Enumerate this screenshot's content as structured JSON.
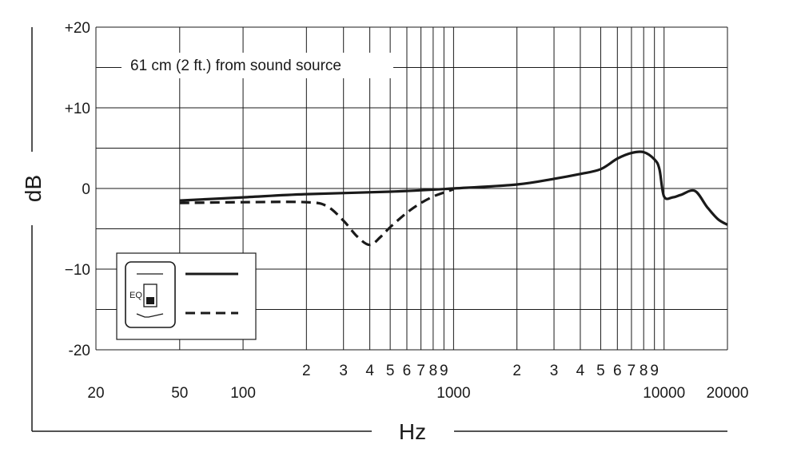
{
  "chart_data": {
    "type": "line",
    "title": "",
    "xlabel": "Hz",
    "ylabel": "dB",
    "xscale": "log",
    "xlim": [
      20,
      20000
    ],
    "ylim": [
      -20,
      20
    ],
    "grid": true,
    "annotation": "61 cm (2 ft.) from sound source",
    "y_ticks": [
      {
        "value": 20,
        "label": "+20"
      },
      {
        "value": 10,
        "label": "+10"
      },
      {
        "value": 0,
        "label": "0"
      },
      {
        "value": -10,
        "label": "−10"
      },
      {
        "value": -20,
        "label": "-20"
      }
    ],
    "x_tick_labels": [
      {
        "value": 20,
        "label": "20",
        "row": 2
      },
      {
        "value": 50,
        "label": "50",
        "row": 2
      },
      {
        "value": 100,
        "label": "100",
        "row": 2
      },
      {
        "value": 200,
        "label": "2",
        "row": 1
      },
      {
        "value": 300,
        "label": "3",
        "row": 1
      },
      {
        "value": 400,
        "label": "4",
        "row": 1
      },
      {
        "value": 500,
        "label": "5",
        "row": 1
      },
      {
        "value": 600,
        "label": "6",
        "row": 1
      },
      {
        "value": 700,
        "label": "7",
        "row": 1
      },
      {
        "value": 800,
        "label": "8",
        "row": 1
      },
      {
        "value": 900,
        "label": "9",
        "row": 1
      },
      {
        "value": 1000,
        "label": "1000",
        "row": 2
      },
      {
        "value": 2000,
        "label": "2",
        "row": 1
      },
      {
        "value": 3000,
        "label": "3",
        "row": 1
      },
      {
        "value": 4000,
        "label": "4",
        "row": 1
      },
      {
        "value": 5000,
        "label": "5",
        "row": 1
      },
      {
        "value": 6000,
        "label": "6",
        "row": 1
      },
      {
        "value": 7000,
        "label": "7",
        "row": 1
      },
      {
        "value": 8000,
        "label": "8",
        "row": 1
      },
      {
        "value": 9000,
        "label": "9",
        "row": 1
      },
      {
        "value": 10000,
        "label": "10000",
        "row": 2
      },
      {
        "value": 20000,
        "label": "20000",
        "row": 2
      }
    ],
    "x_gridlines": [
      20,
      50,
      100,
      200,
      300,
      400,
      500,
      600,
      700,
      800,
      900,
      1000,
      2000,
      3000,
      4000,
      5000,
      6000,
      7000,
      8000,
      9000,
      10000,
      20000
    ],
    "y_gridlines": [
      -20,
      -15,
      -10,
      -5,
      0,
      5,
      10,
      15,
      20
    ],
    "series": [
      {
        "style": "solid",
        "x": [
          50,
          100,
          200,
          500,
          1000,
          2000,
          3000,
          4000,
          5000,
          6000,
          7000,
          8000,
          9000,
          9500,
          10000,
          11000,
          12000,
          14000,
          16000,
          18000,
          20000
        ],
        "y": [
          -1.5,
          -1.1,
          -0.7,
          -0.4,
          0,
          0.5,
          1.2,
          1.8,
          2.4,
          3.7,
          4.4,
          4.5,
          3.6,
          2.4,
          -1.0,
          -1.1,
          -0.8,
          -0.3,
          -2.3,
          -3.8,
          -4.5
        ]
      },
      {
        "style": "dashed",
        "x": [
          50,
          100,
          200,
          250,
          300,
          350,
          400,
          450,
          500,
          600,
          700,
          800,
          900,
          1000
        ],
        "y": [
          -1.8,
          -1.7,
          -1.7,
          -2.2,
          -4.0,
          -6.0,
          -7.0,
          -6.0,
          -4.8,
          -3.0,
          -1.8,
          -1.0,
          -0.5,
          -0.1
        ]
      }
    ],
    "legend": {
      "placement": "bottom-left",
      "switch_label": "EQ"
    }
  }
}
